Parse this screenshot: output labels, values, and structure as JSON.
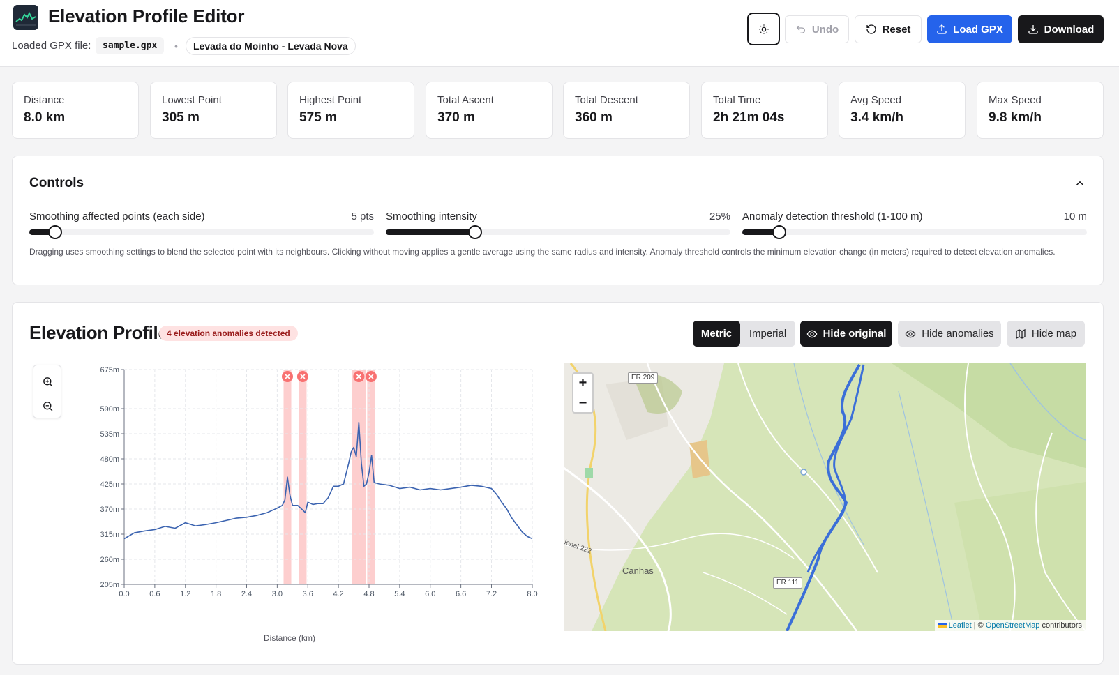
{
  "header": {
    "title": "Elevation Profile Editor",
    "loaded_label": "Loaded GPX file:",
    "filename": "sample.gpx",
    "separator": "•",
    "track_name": "Levada do Moinho - Levada Nova",
    "buttons": {
      "undo": "Undo",
      "reset": "Reset",
      "load": "Load GPX",
      "download": "Download"
    },
    "theme_icon": "sun-icon"
  },
  "stats": [
    {
      "label": "Distance",
      "value": "8.0 km"
    },
    {
      "label": "Lowest Point",
      "value": "305 m"
    },
    {
      "label": "Highest Point",
      "value": "575 m"
    },
    {
      "label": "Total Ascent",
      "value": "370 m"
    },
    {
      "label": "Total Descent",
      "value": "360 m"
    },
    {
      "label": "Total Time",
      "value": "2h 21m 04s"
    },
    {
      "label": "Avg Speed",
      "value": "3.4 km/h"
    },
    {
      "label": "Max Speed",
      "value": "9.8 km/h"
    }
  ],
  "controls": {
    "title": "Controls",
    "sliders": [
      {
        "label": "Smoothing affected points (each side)",
        "value": "5 pts",
        "fraction": 0.075
      },
      {
        "label": "Smoothing intensity",
        "value": "25%",
        "fraction": 0.26
      },
      {
        "label": "Anomaly detection threshold (1-100 m)",
        "value": "10 m",
        "fraction": 0.108
      }
    ],
    "help": "Dragging uses smoothing settings to blend the selected point with its neighbours. Clicking without moving applies a gentle average using the same radius and intensity. Anomaly threshold controls the minimum elevation change (in meters) required to detect elevation anomalies."
  },
  "profile": {
    "title": "Elevation Profile",
    "badge": "4 elevation anomalies detected",
    "units": {
      "metric": "Metric",
      "imperial": "Imperial",
      "selected": "metric"
    },
    "buttons": {
      "hide_original": "Hide original",
      "hide_anomalies": "Hide anomalies",
      "hide_map": "Hide map"
    },
    "map": {
      "zoom_in": "+",
      "zoom_out": "−",
      "road_labels": [
        "ER 209",
        "ER 111",
        "ional 222"
      ],
      "town_label": "Canhas",
      "attribution_leaflet": "Leaflet",
      "attribution_sep": " | © ",
      "attribution_osm": "OpenStreetMap",
      "attribution_tail": " contributors",
      "colors": {
        "track": "#3b6fd8",
        "terrain": "#d3e3b5"
      }
    }
  },
  "chart_data": {
    "type": "line",
    "title": "",
    "xlabel": "Distance (km)",
    "ylabel": "",
    "xlim": [
      0,
      8
    ],
    "ylim": [
      205,
      675
    ],
    "x_ticks": [
      "0.0",
      "0.6",
      "1.2",
      "1.8",
      "2.4",
      "3.0",
      "3.6",
      "4.2",
      "4.8",
      "5.4",
      "6.0",
      "6.6",
      "7.2",
      "8.0"
    ],
    "x_tick_values": [
      0,
      0.6,
      1.2,
      1.8,
      2.4,
      3.0,
      3.6,
      4.2,
      4.8,
      5.4,
      6.0,
      6.6,
      7.2,
      8.0
    ],
    "y_ticks": [
      "205m",
      "260m",
      "315m",
      "370m",
      "425m",
      "480m",
      "535m",
      "590m",
      "675m"
    ],
    "y_tick_values": [
      205,
      260,
      315,
      370,
      425,
      480,
      535,
      590,
      675
    ],
    "grid": true,
    "series": [
      {
        "color": "#3b63b0",
        "x": [
          0,
          0.2,
          0.4,
          0.6,
          0.8,
          1.0,
          1.2,
          1.4,
          1.6,
          1.8,
          2.0,
          2.2,
          2.4,
          2.6,
          2.8,
          3.0,
          3.1,
          3.15,
          3.2,
          3.25,
          3.3,
          3.4,
          3.5,
          3.55,
          3.6,
          3.7,
          3.8,
          3.9,
          4.0,
          4.1,
          4.2,
          4.3,
          4.4,
          4.45,
          4.5,
          4.55,
          4.6,
          4.65,
          4.7,
          4.75,
          4.8,
          4.85,
          4.9,
          5.0,
          5.2,
          5.4,
          5.6,
          5.8,
          6.0,
          6.2,
          6.4,
          6.6,
          6.8,
          7.0,
          7.2,
          7.3,
          7.4,
          7.5,
          7.6,
          7.7,
          7.8,
          7.9,
          8.0
        ],
        "y": [
          305,
          318,
          322,
          325,
          332,
          328,
          340,
          333,
          336,
          340,
          345,
          350,
          352,
          356,
          362,
          372,
          378,
          390,
          440,
          400,
          378,
          378,
          368,
          362,
          385,
          380,
          382,
          382,
          395,
          420,
          420,
          425,
          470,
          495,
          505,
          485,
          560,
          470,
          420,
          425,
          450,
          488,
          428,
          425,
          422,
          415,
          418,
          412,
          415,
          412,
          415,
          418,
          422,
          420,
          415,
          402,
          385,
          370,
          350,
          335,
          320,
          310,
          305
        ]
      }
    ],
    "anomalies_km": [
      3.2,
      3.5,
      4.6,
      4.84
    ]
  }
}
